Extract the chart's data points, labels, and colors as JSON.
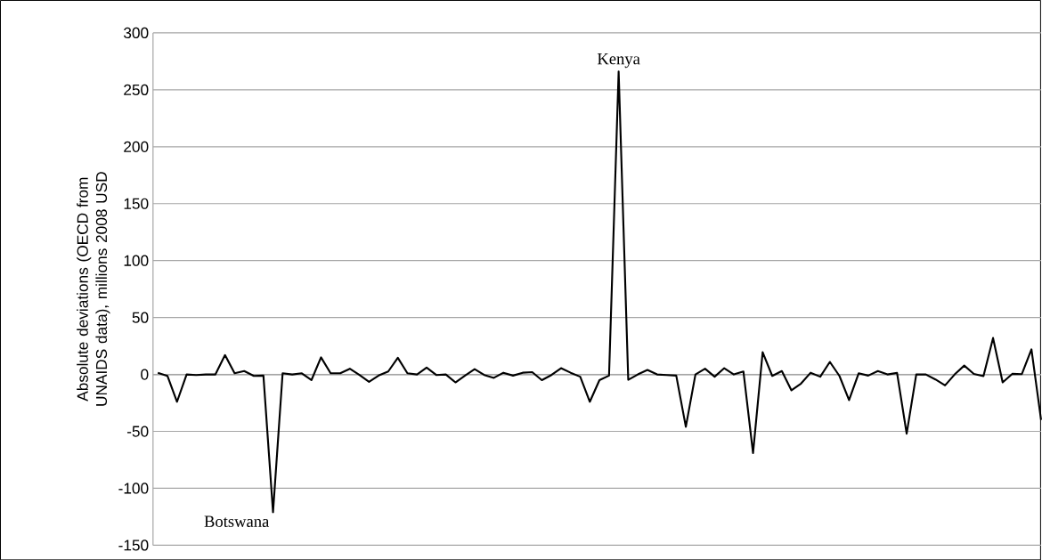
{
  "chart_data": {
    "type": "line",
    "ylabel": "Absolute deviations (OECD from UNAIDS data), millions 2008 USD",
    "categories": [
      null,
      null,
      null,
      null,
      null,
      null,
      null,
      null,
      null,
      null,
      null,
      null,
      null,
      null,
      null,
      null,
      null,
      null,
      null,
      null,
      null,
      null,
      null,
      null,
      null,
      null,
      null,
      null,
      null,
      null,
      null,
      null,
      null,
      null,
      null,
      null,
      null,
      null,
      null,
      null,
      null,
      null,
      null,
      null,
      null,
      null,
      null,
      null,
      null,
      null,
      null,
      null,
      null,
      null,
      null,
      null,
      null,
      null,
      null,
      null,
      null,
      null,
      null,
      null,
      null,
      null,
      null,
      null,
      null,
      null,
      null,
      null,
      null,
      null,
      null,
      null,
      null,
      null,
      null,
      null,
      null,
      null,
      null,
      null,
      null,
      null,
      null,
      null,
      null,
      null,
      null,
      null,
      null
    ],
    "series": [
      {
        "color": "#000000",
        "values": [
          1.5,
          -1.3,
          -24,
          0,
          -0.5,
          0,
          0,
          17,
          1,
          3,
          -1.3,
          -1,
          -121,
          1,
          0,
          1,
          -5,
          15,
          1,
          1,
          5,
          -0.5,
          -6.5,
          -1,
          2.6,
          14.6,
          1,
          0,
          6,
          -0.5,
          0,
          -7,
          -1,
          4.7,
          -0.5,
          -3,
          1.5,
          -1,
          1.5,
          2,
          -5,
          -0.5,
          5.5,
          1.5,
          -2,
          -24,
          -5,
          -1,
          266,
          -4.7,
          0,
          4,
          0,
          -0.5,
          -1,
          -46,
          0,
          5,
          -2,
          5.5,
          0,
          2.6,
          -69,
          19.5,
          -1.3,
          3,
          -14,
          -8,
          1.5,
          -2,
          11,
          -1.3,
          -22.6,
          1,
          -1,
          3,
          0,
          1.3,
          -52,
          0,
          0,
          -4.4,
          -9.6,
          0,
          7.8,
          0.5,
          -1.5,
          32,
          -7,
          0.5,
          0.3,
          22,
          -40
        ]
      }
    ],
    "ylim": [
      -150,
      300
    ],
    "yticks": [
      -150,
      -100,
      -50,
      0,
      50,
      100,
      150,
      200,
      250,
      300
    ],
    "grid": "y",
    "marker": "none",
    "line_style": "solid",
    "annotations": [
      "Kenya",
      "Botswana"
    ]
  }
}
